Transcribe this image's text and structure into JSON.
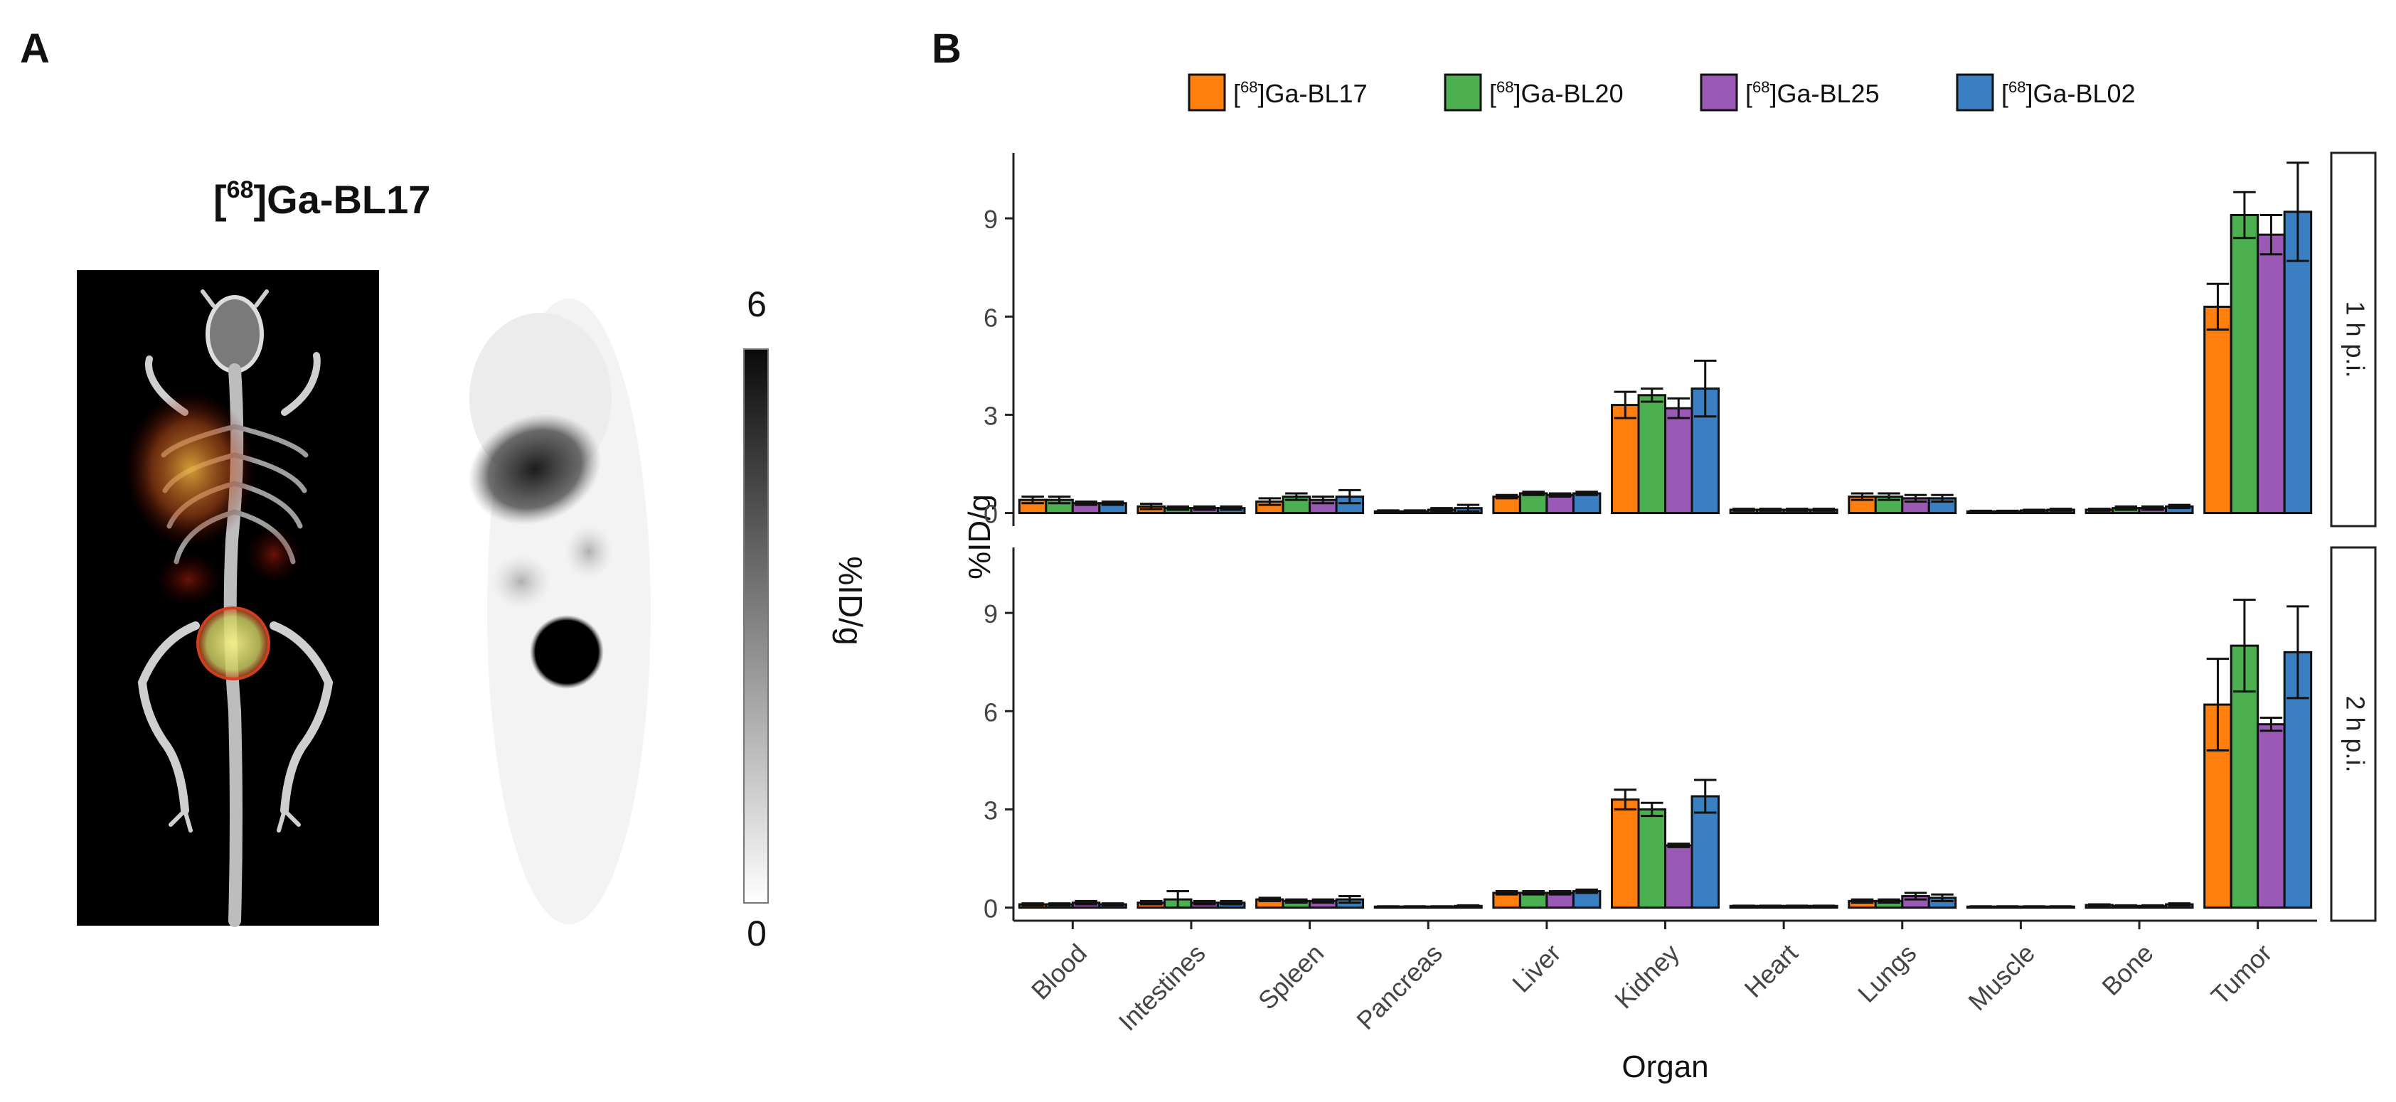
{
  "panel_a": {
    "label": "A",
    "title_prefix": "[",
    "title_sup": "68",
    "title_suffix": "]Ga-BL17",
    "colorbar": {
      "max_label": "6",
      "min_label": "0",
      "unit_label": "%ID/g"
    }
  },
  "panel_b": {
    "label": "B"
  },
  "chart_data": {
    "type": "bar",
    "x_label": "Organ",
    "y_label": "%ID/g",
    "ylim": [
      -0.4,
      11
    ],
    "y_ticks": [
      0,
      3,
      6,
      9
    ],
    "y_tick_labels": [
      "0",
      "3",
      "6",
      "9"
    ],
    "categories": [
      "Blood",
      "Intestines",
      "Spleen",
      "Pancreas",
      "Liver",
      "Kidney",
      "Heart",
      "Lungs",
      "Muscle",
      "Bone",
      "Tumor"
    ],
    "legend_position": "top",
    "series": [
      {
        "name": "[68Ga]Ga-BL17",
        "prefix": "[",
        "sup": "68",
        "suffix": "]Ga-BL17",
        "color": "#FF7F0E"
      },
      {
        "name": "[68Ga]Ga-BL20",
        "prefix": "[",
        "sup": "68",
        "suffix": "]Ga-BL20",
        "color": "#4CAF50"
      },
      {
        "name": "[68Ga]Ga-BL25",
        "prefix": "[",
        "sup": "68",
        "suffix": "]Ga-BL25",
        "color": "#9B59B6"
      },
      {
        "name": "[68Ga]Ga-BL02",
        "prefix": "[",
        "sup": "68",
        "suffix": "]Ga-BL02",
        "color": "#3A7FC1"
      }
    ],
    "facets": [
      {
        "label": "1 h p.i.",
        "values": [
          [
            0.4,
            0.2,
            0.35,
            0.05,
            0.5,
            3.3,
            0.1,
            0.5,
            0.05,
            0.1,
            6.3
          ],
          [
            0.4,
            0.15,
            0.5,
            0.05,
            0.6,
            3.6,
            0.1,
            0.5,
            0.05,
            0.15,
            9.1
          ],
          [
            0.3,
            0.15,
            0.4,
            0.1,
            0.55,
            3.2,
            0.1,
            0.45,
            0.08,
            0.15,
            8.5
          ],
          [
            0.3,
            0.15,
            0.5,
            0.15,
            0.6,
            3.8,
            0.1,
            0.45,
            0.1,
            0.2,
            9.2
          ]
        ],
        "errors": [
          [
            0.1,
            0.08,
            0.1,
            0.03,
            0.05,
            0.4,
            0.03,
            0.1,
            0.02,
            0.03,
            0.7
          ],
          [
            0.1,
            0.05,
            0.1,
            0.03,
            0.05,
            0.2,
            0.03,
            0.1,
            0.02,
            0.05,
            0.7
          ],
          [
            0.05,
            0.05,
            0.1,
            0.05,
            0.05,
            0.3,
            0.03,
            0.1,
            0.02,
            0.05,
            0.6
          ],
          [
            0.05,
            0.05,
            0.2,
            0.1,
            0.05,
            0.85,
            0.03,
            0.1,
            0.03,
            0.05,
            1.5
          ]
        ]
      },
      {
        "label": "2 h p.i.",
        "values": [
          [
            0.1,
            0.15,
            0.25,
            0.03,
            0.45,
            3.3,
            0.05,
            0.2,
            0.03,
            0.08,
            6.2
          ],
          [
            0.1,
            0.25,
            0.2,
            0.03,
            0.45,
            3.0,
            0.05,
            0.2,
            0.03,
            0.05,
            8.0
          ],
          [
            0.15,
            0.15,
            0.2,
            0.03,
            0.45,
            1.9,
            0.05,
            0.35,
            0.03,
            0.05,
            5.6
          ],
          [
            0.1,
            0.15,
            0.25,
            0.05,
            0.5,
            3.4,
            0.05,
            0.3,
            0.03,
            0.1,
            7.8
          ]
        ],
        "errors": [
          [
            0.03,
            0.05,
            0.05,
            0.01,
            0.05,
            0.3,
            0.01,
            0.05,
            0.01,
            0.02,
            1.4
          ],
          [
            0.03,
            0.25,
            0.05,
            0.01,
            0.05,
            0.2,
            0.01,
            0.05,
            0.01,
            0.02,
            1.4
          ],
          [
            0.05,
            0.05,
            0.05,
            0.01,
            0.05,
            0.05,
            0.01,
            0.1,
            0.01,
            0.02,
            0.2
          ],
          [
            0.03,
            0.05,
            0.1,
            0.02,
            0.05,
            0.5,
            0.01,
            0.1,
            0.01,
            0.03,
            1.4
          ]
        ]
      }
    ]
  }
}
